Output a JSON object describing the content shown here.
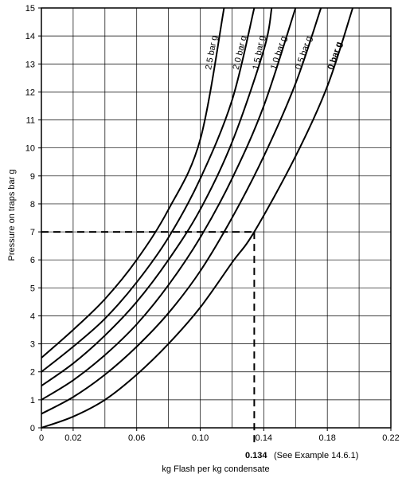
{
  "chart_data": {
    "type": "line",
    "xlabel": "kg Flash per kg condensate",
    "ylabel": "Pressure on traps bar g",
    "xlim": [
      0,
      0.22
    ],
    "ylim": [
      0,
      15
    ],
    "xticks": [
      0,
      0.02,
      0.06,
      0.1,
      0.14,
      0.18,
      0.22
    ],
    "xtick_labels": [
      "0",
      "0.02",
      "0.06",
      "0.10",
      "0.14",
      "0.18",
      "0.22"
    ],
    "yticks": [
      0,
      1,
      2,
      3,
      4,
      5,
      6,
      7,
      8,
      9,
      10,
      11,
      12,
      13,
      14,
      15
    ],
    "ytick_labels": [
      "0",
      "1",
      "2",
      "3",
      "4",
      "5",
      "6",
      "7",
      "8",
      "9",
      "10",
      "11",
      "12",
      "13",
      "14",
      "15"
    ],
    "grid": true,
    "series": [
      {
        "name": "0 bar g",
        "x": [
          0,
          0.02,
          0.04,
          0.06,
          0.08,
          0.1,
          0.12,
          0.134,
          0.16,
          0.18,
          0.196
        ],
        "y": [
          0,
          0.4,
          1.0,
          1.9,
          3.0,
          4.3,
          5.9,
          7.0,
          9.7,
          12.2,
          15
        ]
      },
      {
        "name": "0.5 bar g",
        "x": [
          0,
          0.02,
          0.04,
          0.06,
          0.08,
          0.1,
          0.12,
          0.14,
          0.16,
          0.176
        ],
        "y": [
          0.5,
          1.1,
          1.9,
          2.9,
          4.1,
          5.6,
          7.5,
          9.7,
          12.3,
          15
        ]
      },
      {
        "name": "1.0 bar g",
        "x": [
          0,
          0.02,
          0.04,
          0.06,
          0.08,
          0.1,
          0.12,
          0.14,
          0.16
        ],
        "y": [
          1.0,
          1.7,
          2.6,
          3.7,
          5.1,
          6.8,
          8.9,
          11.5,
          15
        ]
      },
      {
        "name": "1.5 bar g",
        "x": [
          0,
          0.02,
          0.04,
          0.06,
          0.08,
          0.1,
          0.12,
          0.14,
          0.145
        ],
        "y": [
          1.5,
          2.3,
          3.3,
          4.5,
          6.0,
          7.8,
          10.2,
          13.5,
          15
        ]
      },
      {
        "name": "2.0 bar g",
        "x": [
          0,
          0.02,
          0.04,
          0.06,
          0.08,
          0.1,
          0.12,
          0.134
        ],
        "y": [
          2.0,
          2.9,
          3.9,
          5.2,
          6.8,
          8.9,
          11.7,
          15
        ]
      },
      {
        "name": "2.5 bar g",
        "x": [
          0,
          0.02,
          0.04,
          0.06,
          0.08,
          0.1,
          0.115
        ],
        "y": [
          2.5,
          3.5,
          4.6,
          6.0,
          7.8,
          10.3,
          15
        ]
      }
    ],
    "annotations": {
      "example_x": 0.134,
      "example_y": 7,
      "example_value_label": "0.134",
      "example_note": "(See Example 14.6.1)"
    }
  }
}
